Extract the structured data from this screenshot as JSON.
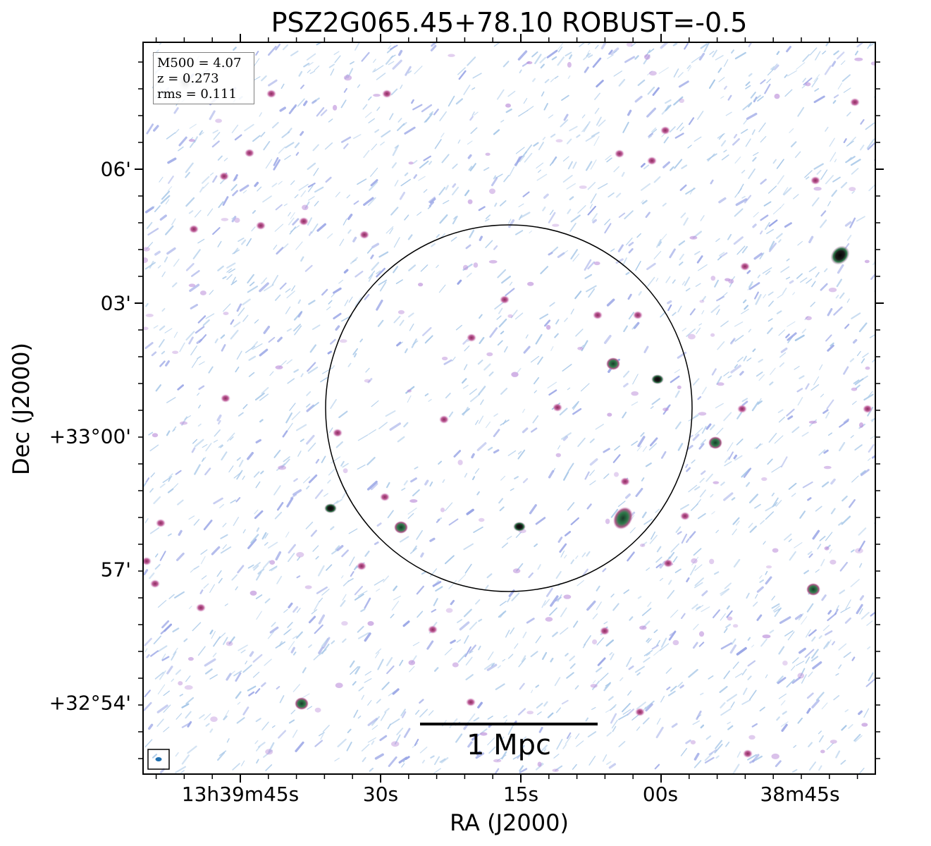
{
  "title": "PSZ2G065.45+78.10 ROBUST=-0.5",
  "axes": {
    "xlabel": "RA (J2000)",
    "ylabel": "Dec (J2000)",
    "xticks": [
      "13h39m45s",
      "30s",
      "15s",
      "00s",
      "38m45s"
    ],
    "yticks": [
      "06'",
      "03'",
      "+33°00'",
      "57'",
      "+32°54'"
    ]
  },
  "info": {
    "mass": "M500 = 4.07",
    "redshift": "z = 0.273",
    "rms": "rms = 0.111"
  },
  "scalebar": {
    "label": "1 Mpc"
  },
  "colors": {
    "noise_light": "#a8c8e8",
    "noise_blue": "#9aa6e6",
    "source_magenta": "#c0609a",
    "source_core": "#0a0a0a",
    "source_green": "#2e7a4a"
  }
}
